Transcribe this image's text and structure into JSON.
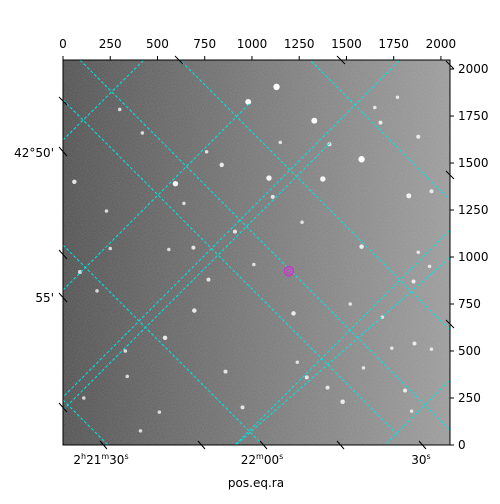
{
  "chart_data": {
    "type": "scatter",
    "title": "",
    "description_axes": {
      "pixel_x_ticks": [
        0,
        250,
        500,
        750,
        1000,
        1250,
        1500,
        1750,
        2000
      ],
      "pixel_y_ticks": [
        0,
        250,
        500,
        750,
        1000,
        1250,
        1500,
        1750,
        2000
      ],
      "pixel_xlim": [
        0,
        2048
      ],
      "pixel_ylim": [
        0,
        2048
      ]
    },
    "wcs_ticks": {
      "ra_labels": [
        "2h21m30s",
        "22m00s",
        "30s"
      ],
      "dec_labels": [
        "42°50'",
        "55'"
      ]
    },
    "xlabel": "pos.eq.ra",
    "ylabel": "",
    "grid": true,
    "grid_color": "#00e5e5",
    "marker": {
      "x": 1195,
      "y": 925,
      "color": "#cc33cc"
    },
    "stars": [
      {
        "x": 1130,
        "y": 1905,
        "b": 1.0
      },
      {
        "x": 980,
        "y": 1825,
        "b": 0.9
      },
      {
        "x": 1330,
        "y": 1725,
        "b": 0.9
      },
      {
        "x": 1580,
        "y": 1520,
        "b": 1.0
      },
      {
        "x": 1375,
        "y": 1415,
        "b": 0.8
      },
      {
        "x": 1090,
        "y": 1420,
        "b": 0.8
      },
      {
        "x": 595,
        "y": 1390,
        "b": 0.8
      },
      {
        "x": 60,
        "y": 1400,
        "b": 0.6
      },
      {
        "x": 840,
        "y": 1490,
        "b": 0.6
      },
      {
        "x": 1580,
        "y": 1055,
        "b": 0.6
      },
      {
        "x": 1830,
        "y": 1325,
        "b": 0.7
      },
      {
        "x": 1950,
        "y": 1350,
        "b": 0.5
      },
      {
        "x": 1680,
        "y": 1715,
        "b": 0.5
      },
      {
        "x": 1410,
        "y": 1600,
        "b": 0.5
      },
      {
        "x": 1880,
        "y": 1640,
        "b": 0.5
      },
      {
        "x": 1770,
        "y": 1850,
        "b": 0.4
      },
      {
        "x": 1650,
        "y": 1795,
        "b": 0.4
      },
      {
        "x": 300,
        "y": 1785,
        "b": 0.4
      },
      {
        "x": 1110,
        "y": 1320,
        "b": 0.5
      },
      {
        "x": 690,
        "y": 1050,
        "b": 0.5
      },
      {
        "x": 910,
        "y": 1135,
        "b": 0.5
      },
      {
        "x": 560,
        "y": 1040,
        "b": 0.4
      },
      {
        "x": 250,
        "y": 1045,
        "b": 0.4
      },
      {
        "x": 90,
        "y": 920,
        "b": 0.5
      },
      {
        "x": 770,
        "y": 880,
        "b": 0.5
      },
      {
        "x": 1010,
        "y": 960,
        "b": 0.4
      },
      {
        "x": 1880,
        "y": 1025,
        "b": 0.4
      },
      {
        "x": 1855,
        "y": 870,
        "b": 0.5
      },
      {
        "x": 1520,
        "y": 750,
        "b": 0.4
      },
      {
        "x": 1220,
        "y": 700,
        "b": 0.6
      },
      {
        "x": 1690,
        "y": 680,
        "b": 0.4
      },
      {
        "x": 1940,
        "y": 950,
        "b": 0.4
      },
      {
        "x": 695,
        "y": 715,
        "b": 0.6
      },
      {
        "x": 540,
        "y": 570,
        "b": 0.6
      },
      {
        "x": 330,
        "y": 500,
        "b": 0.4
      },
      {
        "x": 860,
        "y": 390,
        "b": 0.5
      },
      {
        "x": 1290,
        "y": 360,
        "b": 0.5
      },
      {
        "x": 1400,
        "y": 305,
        "b": 0.5
      },
      {
        "x": 1480,
        "y": 230,
        "b": 0.6
      },
      {
        "x": 1810,
        "y": 290,
        "b": 0.5
      },
      {
        "x": 1845,
        "y": 180,
        "b": 0.4
      },
      {
        "x": 950,
        "y": 200,
        "b": 0.5
      },
      {
        "x": 510,
        "y": 175,
        "b": 0.4
      },
      {
        "x": 340,
        "y": 365,
        "b": 0.4
      },
      {
        "x": 110,
        "y": 250,
        "b": 0.4
      },
      {
        "x": 410,
        "y": 75,
        "b": 0.4
      },
      {
        "x": 1860,
        "y": 540,
        "b": 0.5
      },
      {
        "x": 1950,
        "y": 510,
        "b": 0.4
      },
      {
        "x": 1740,
        "y": 515,
        "b": 0.4
      },
      {
        "x": 1590,
        "y": 410,
        "b": 0.4
      },
      {
        "x": 1240,
        "y": 440,
        "b": 0.4
      },
      {
        "x": 230,
        "y": 1245,
        "b": 0.4
      },
      {
        "x": 180,
        "y": 820,
        "b": 0.4
      },
      {
        "x": 760,
        "y": 1560,
        "b": 0.4
      },
      {
        "x": 420,
        "y": 1660,
        "b": 0.4
      },
      {
        "x": 1150,
        "y": 1610,
        "b": 0.4
      },
      {
        "x": 1265,
        "y": 1185,
        "b": 0.4
      },
      {
        "x": 640,
        "y": 1285,
        "b": 0.4
      }
    ]
  }
}
